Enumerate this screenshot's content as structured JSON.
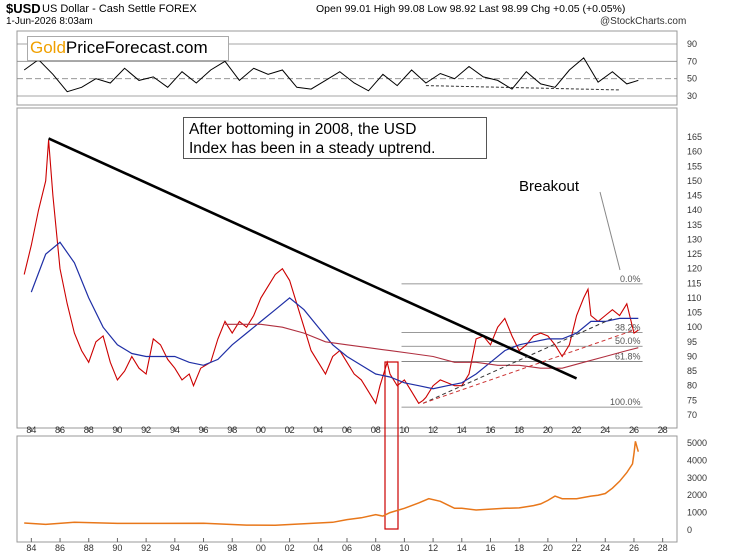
{
  "header": {
    "symbol": "$USD",
    "description": "US Dollar - Cash Settle FOREX",
    "date": "1-Jun-2026 8:03am",
    "ohlc_line": "Open 99.01  High 99.08  Low 98.92  Last 98.99  Chg +0.05 (+0.05%)",
    "brand": "@StockCharts.com"
  },
  "logo": {
    "gold": "Gold",
    "rest": "PriceForecast.com"
  },
  "annotations": {
    "main_text": "After bottoming in 2008, the USD\nIndex has been in a steady uptrend.",
    "breakout": "Breakout"
  },
  "fib_labels": [
    "0.0%",
    "38.2%",
    "50.0%",
    "61.8%",
    "100.0%"
  ],
  "colors": {
    "price": "#cc0000",
    "ma_short": "#1f2fa6",
    "ma_long": "#b03040",
    "gold": "#e8771a",
    "trend": "#000000",
    "support": "#cc3333"
  },
  "chart_data": [
    {
      "type": "line",
      "name": "RSI",
      "x": [
        1983.5,
        1984.5,
        1985.5,
        1986.5,
        1987.5,
        1988.5,
        1989.5,
        1990.5,
        1991.5,
        1992.5,
        1993.5,
        1994.5,
        1995.5,
        1996.5,
        1997.5,
        1998.5,
        1999.5,
        2000.5,
        2001.5,
        2002.5,
        2003.5,
        2004.5,
        2005.5,
        2006.5,
        2007.5,
        2008.5,
        2009.5,
        2010.5,
        2011.5,
        2012.5,
        2013.5,
        2014.5,
        2015.5,
        2016.5,
        2017.5,
        2018.5,
        2019.5,
        2020.5,
        2021.5,
        2022.5,
        2023.5,
        2024.5,
        2025.5,
        2026.3
      ],
      "y": [
        60,
        72,
        55,
        35,
        40,
        50,
        45,
        62,
        48,
        52,
        40,
        58,
        45,
        60,
        70,
        48,
        62,
        55,
        60,
        40,
        38,
        48,
        58,
        45,
        36,
        55,
        42,
        60,
        45,
        56,
        50,
        64,
        52,
        48,
        38,
        58,
        44,
        40,
        60,
        74,
        46,
        58,
        44,
        48
      ],
      "yticks": [
        30,
        50,
        70,
        90
      ]
    },
    {
      "type": "line",
      "title": "",
      "xlabel": "",
      "ylabel": "",
      "ylim": [
        70,
        165
      ],
      "xlim": [
        1983,
        2029
      ],
      "x_tick_labels": [
        "84",
        "86",
        "88",
        "90",
        "92",
        "94",
        "96",
        "98",
        "00",
        "02",
        "04",
        "06",
        "08",
        "10",
        "12",
        "14",
        "16",
        "18",
        "20",
        "22",
        "24",
        "26",
        "28"
      ],
      "yticks": [
        70,
        75,
        80,
        85,
        90,
        95,
        100,
        105,
        110,
        115,
        120,
        125,
        130,
        135,
        140,
        145,
        150,
        155,
        160,
        165
      ],
      "series": [
        {
          "x": [
            1983.5,
            1984.0,
            1984.5,
            1985.0,
            1985.2,
            1985.5,
            1986.0,
            1986.5,
            1987.0,
            1987.5,
            1988.0,
            1988.5,
            1989.0,
            1989.5,
            1990.0,
            1990.5,
            1991.0,
            1991.5,
            1992.0,
            1992.5,
            1993.0,
            1993.5,
            1994.0,
            1994.5,
            1995.0,
            1995.3,
            1995.8,
            1996.5,
            1997.0,
            1997.5,
            1998.0,
            1998.5,
            1999.0,
            1999.5,
            2000.0,
            2000.5,
            2001.0,
            2001.5,
            2002.0,
            2002.5,
            2003.0,
            2003.5,
            2004.0,
            2004.5,
            2005.0,
            2005.5,
            2006.0,
            2006.5,
            2007.0,
            2007.5,
            2008.0,
            2008.3,
            2008.8,
            2009.0,
            2009.5,
            2010.0,
            2010.5,
            2011.0,
            2011.3,
            2011.5,
            2012.0,
            2012.5,
            2013.0,
            2013.5,
            2014.0,
            2014.5,
            2015.0,
            2015.5,
            2016.0,
            2016.5,
            2017.0,
            2017.5,
            2018.0,
            2018.5,
            2019.0,
            2019.5,
            2020.0,
            2020.5,
            2021.0,
            2021.5,
            2022.0,
            2022.5,
            2022.8,
            2023.0,
            2023.5,
            2024.0,
            2024.5,
            2025.0,
            2025.5,
            2026.0,
            2026.3
          ],
          "y": [
            118,
            128,
            140,
            150,
            164,
            145,
            120,
            108,
            98,
            92,
            88,
            95,
            97,
            88,
            82,
            85,
            90,
            86,
            84,
            96,
            94,
            89,
            86,
            82,
            84,
            80,
            86,
            88,
            96,
            102,
            98,
            102,
            100,
            104,
            110,
            114,
            118,
            120,
            116,
            108,
            100,
            92,
            88,
            84,
            90,
            92,
            88,
            84,
            82,
            78,
            74,
            80,
            88,
            84,
            80,
            82,
            78,
            74,
            75,
            76,
            80,
            82,
            81,
            80,
            80,
            84,
            96,
            97,
            94,
            100,
            103,
            97,
            92,
            94,
            97,
            98,
            97,
            94,
            90,
            94,
            104,
            110,
            113,
            104,
            102,
            104,
            106,
            104,
            108,
            98,
            99
          ],
          "color": "#cc0000"
        },
        {
          "x": [
            1984.0,
            1985.0,
            1986.0,
            1987.0,
            1988.0,
            1989.0,
            1990.0,
            1991.0,
            1992.0,
            1993.0,
            1994.0,
            1995.0,
            1996.0,
            1997.0,
            1998.0,
            1999.0,
            2000.0,
            2001.0,
            2002.0,
            2003.0,
            2004.0,
            2005.0,
            2006.0,
            2007.0,
            2008.0,
            2009.0,
            2010.0,
            2011.0,
            2012.0,
            2013.0,
            2014.0,
            2015.0,
            2016.0,
            2017.0,
            2018.0,
            2019.0,
            2020.0,
            2021.0,
            2022.0,
            2023.0,
            2024.0,
            2025.0,
            2026.0,
            2026.3
          ],
          "y": [
            112,
            125,
            129,
            122,
            110,
            100,
            94,
            91,
            90,
            90,
            90,
            88,
            87,
            89,
            94,
            98,
            102,
            106,
            110,
            106,
            100,
            94,
            90,
            87,
            84,
            83,
            81,
            80,
            79,
            80,
            81,
            84,
            88,
            92,
            94,
            95,
            96,
            96,
            98,
            102,
            102,
            103,
            103,
            103
          ],
          "color": "#1f2fa6"
        },
        {
          "x": [
            1997.5,
            1998.5,
            2000.0,
            2001.5,
            2003.0,
            2004.5,
            2006.0,
            2007.5,
            2009.0,
            2010.5,
            2012.0,
            2013.5,
            2015.0,
            2016.5,
            2018.0,
            2019.5,
            2021.0,
            2022.5,
            2024.0,
            2025.5,
            2026.3
          ],
          "y": [
            101,
            101,
            101,
            100,
            98,
            95,
            94,
            93,
            92,
            91,
            90,
            88,
            88,
            87,
            87,
            86,
            86,
            88,
            90,
            92,
            93
          ],
          "color": "#b03040"
        }
      ],
      "trendlines": [
        {
          "x": [
            1985.2,
            2022.0
          ],
          "y": [
            164.5,
            82.5
          ]
        },
        {
          "x": [
            2011.3,
            2024.5
          ],
          "y": [
            74,
            103
          ]
        },
        {
          "x": [
            2011.3,
            2026.0
          ],
          "y": [
            74,
            99
          ]
        }
      ],
      "fib_levels": [
        {
          "label": "0.0%",
          "y": 114.8
        },
        {
          "label": "38.2%",
          "y": 98.2
        },
        {
          "label": "50.0%",
          "y": 93.5
        },
        {
          "label": "61.8%",
          "y": 88.3
        },
        {
          "label": "100.0%",
          "y": 72.7
        }
      ]
    },
    {
      "type": "area",
      "name": "Gold",
      "x": [
        1983.5,
        1985.0,
        1987.0,
        1990.0,
        1993.0,
        1996.0,
        1999.0,
        2001.0,
        2003.0,
        2005.0,
        2006.0,
        2007.0,
        2008.0,
        2008.5,
        2009.0,
        2010.0,
        2011.0,
        2011.7,
        2012.5,
        2013.0,
        2013.5,
        2014.0,
        2015.0,
        2016.0,
        2017.0,
        2018.0,
        2019.0,
        2019.5,
        2020.0,
        2020.5,
        2021.0,
        2022.0,
        2023.0,
        2023.5,
        2024.0,
        2024.5,
        2025.0,
        2025.5,
        2025.9,
        2026.0,
        2026.1,
        2026.3
      ],
      "y": [
        400,
        320,
        450,
        380,
        380,
        390,
        280,
        270,
        360,
        440,
        600,
        700,
        880,
        800,
        1000,
        1250,
        1560,
        1800,
        1650,
        1450,
        1250,
        1250,
        1150,
        1200,
        1250,
        1270,
        1400,
        1500,
        1700,
        1950,
        1800,
        1800,
        1950,
        2000,
        2100,
        2400,
        2800,
        3300,
        3800,
        4400,
        5100,
        4500
      ],
      "ylim": [
        0,
        5500
      ],
      "yticks": [
        0,
        1000,
        2000,
        3000,
        4000,
        5000
      ]
    }
  ]
}
